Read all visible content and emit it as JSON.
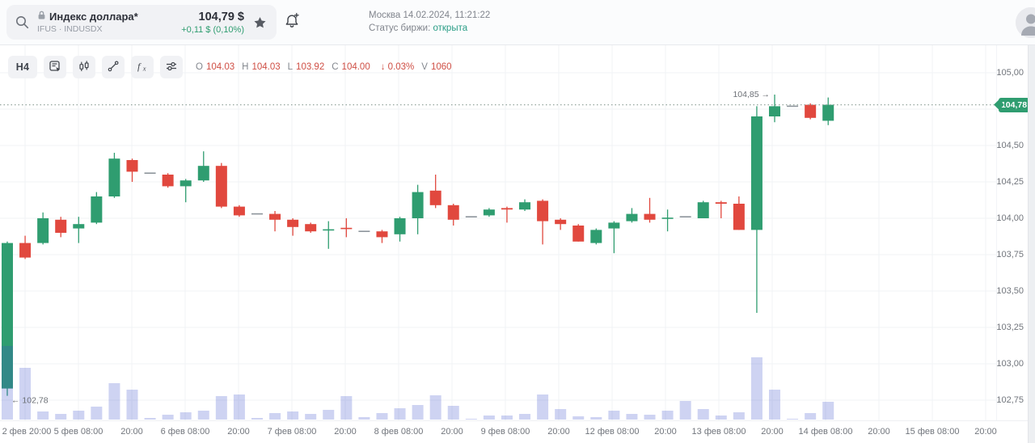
{
  "header": {
    "title": "Индекс доллара*",
    "subtitle": "IFUS · INDUSDX",
    "price": "104,79 $",
    "change": "+0,11 $ (0,10%)",
    "clock": "Москва 14.02.2024, 11:21:22",
    "status_label": "Статус биржи:",
    "status_value": "открыта"
  },
  "toolbar": {
    "timeframe": "H4",
    "ohlc": [
      {
        "l": "O",
        "v": "104.03"
      },
      {
        "l": "H",
        "v": "104.03"
      },
      {
        "l": "L",
        "v": "103.92"
      },
      {
        "l": "C",
        "v": "104.00"
      },
      {
        "l": "",
        "v": "↓ 0.03%"
      },
      {
        "l": "V",
        "v": "1060"
      }
    ]
  },
  "colors": {
    "up": "#2F9D70",
    "down": "#E1483E",
    "neutral": "#8D949B",
    "volume": "rgba(59,79,203,0.25)",
    "grid": "#f1f3f6",
    "dotted_line": "#94a69e",
    "annotation_text": "#6c7076",
    "change_green": "#2F9D70",
    "status_open_green": "#2A9D86",
    "ohlc_value_red": "#CF4F45",
    "tag_bg": "#2F9D70"
  },
  "chart_data": {
    "type": "candlestick",
    "title": "Индекс доллара (IFUS · INDUSDX), H4",
    "grid": true,
    "legend_position": "none",
    "current_price": 104.78,
    "current_price_label": "104,78",
    "high_annotation": {
      "text": "104,85 →",
      "price": 104.85
    },
    "low_annotation": {
      "text": "← 102,78",
      "price": 102.78
    },
    "y_axis": {
      "min": 102.75,
      "max": 105.0,
      "step": 0.25,
      "ticks": [
        {
          "p": 105.0,
          "t": "105,00"
        },
        {
          "p": 104.5,
          "t": "104,50"
        },
        {
          "p": 104.25,
          "t": "104,25"
        },
        {
          "p": 104.0,
          "t": "104,00"
        },
        {
          "p": 103.75,
          "t": "103,75"
        },
        {
          "p": 103.5,
          "t": "103,50"
        },
        {
          "p": 103.25,
          "t": "103,25"
        },
        {
          "p": 103.0,
          "t": "103,00"
        },
        {
          "p": 102.75,
          "t": "102,75"
        }
      ]
    },
    "x_axis": {
      "tick_labels": [
        "2 фев 20:00",
        "5 фев 08:00",
        "20:00",
        "6 фев 08:00",
        "20:00",
        "7 фев 08:00",
        "20:00",
        "8 фев 08:00",
        "20:00",
        "9 фев 08:00",
        "20:00",
        "12 фев 08:00",
        "20:00",
        "13 фев 08:00",
        "20:00",
        "14 фев 08:00",
        "20:00",
        "15 фев 08:00",
        "20:00"
      ]
    },
    "candle_format": [
      "open",
      "high",
      "low",
      "close",
      "color(g=up,r=down,n=neutral)",
      "shape(n=normal,x=cross-doji,d=flat-dash)",
      "volume_relative"
    ],
    "candles": [
      [
        102.83,
        103.84,
        102.78,
        103.83,
        "g",
        "n",
        91
      ],
      [
        103.83,
        103.88,
        103.72,
        103.73,
        "r",
        "n",
        64
      ],
      [
        103.83,
        104.04,
        103.82,
        104.0,
        "g",
        "n",
        10
      ],
      [
        103.99,
        104.01,
        103.87,
        103.9,
        "r",
        "n",
        7
      ],
      [
        103.93,
        104.01,
        103.83,
        103.96,
        "g",
        "n",
        11
      ],
      [
        103.97,
        104.18,
        103.96,
        104.15,
        "g",
        "n",
        16
      ],
      [
        104.15,
        104.45,
        104.14,
        104.41,
        "g",
        "n",
        45
      ],
      [
        104.4,
        104.41,
        104.25,
        104.32,
        "r",
        "n",
        37
      ],
      [
        104.31,
        104.32,
        104.3,
        104.31,
        "n",
        "d",
        2
      ],
      [
        104.3,
        104.31,
        104.21,
        104.22,
        "r",
        "n",
        6
      ],
      [
        104.22,
        104.27,
        104.11,
        104.26,
        "g",
        "n",
        9
      ],
      [
        104.26,
        104.46,
        104.25,
        104.36,
        "g",
        "n",
        11
      ],
      [
        104.36,
        104.38,
        104.07,
        104.08,
        "r",
        "n",
        29
      ],
      [
        104.08,
        104.09,
        104.01,
        104.02,
        "r",
        "n",
        31
      ],
      [
        104.03,
        104.04,
        104.02,
        104.03,
        "n",
        "d",
        2
      ],
      [
        104.03,
        104.05,
        103.91,
        103.99,
        "r",
        "n",
        8
      ],
      [
        103.99,
        104.0,
        103.88,
        103.94,
        "r",
        "n",
        10
      ],
      [
        103.96,
        103.97,
        103.9,
        103.91,
        "r",
        "n",
        7
      ],
      [
        103.92,
        103.98,
        103.79,
        103.92,
        "g",
        "x",
        12
      ],
      [
        103.93,
        104.0,
        103.87,
        103.93,
        "r",
        "x",
        29
      ],
      [
        103.91,
        103.92,
        103.9,
        103.91,
        "n",
        "d",
        3
      ],
      [
        103.91,
        103.92,
        103.83,
        103.87,
        "r",
        "n",
        8
      ],
      [
        103.89,
        104.01,
        103.84,
        104.0,
        "g",
        "n",
        14
      ],
      [
        104.0,
        104.23,
        103.89,
        104.18,
        "g",
        "n",
        18
      ],
      [
        104.19,
        104.3,
        104.07,
        104.09,
        "r",
        "n",
        30
      ],
      [
        104.09,
        104.1,
        103.95,
        103.99,
        "r",
        "n",
        17
      ],
      [
        104.01,
        104.02,
        104.0,
        104.01,
        "n",
        "d",
        1
      ],
      [
        104.02,
        104.07,
        104.01,
        104.06,
        "g",
        "n",
        5
      ],
      [
        104.07,
        104.08,
        103.97,
        104.06,
        "r",
        "n",
        5
      ],
      [
        104.06,
        104.13,
        104.05,
        104.11,
        "g",
        "n",
        7
      ],
      [
        104.12,
        104.13,
        103.82,
        103.98,
        "r",
        "n",
        31
      ],
      [
        103.99,
        104.0,
        103.92,
        103.96,
        "r",
        "n",
        13
      ],
      [
        103.95,
        103.96,
        103.84,
        103.84,
        "r",
        "n",
        4
      ],
      [
        103.83,
        103.93,
        103.82,
        103.92,
        "g",
        "n",
        3
      ],
      [
        103.93,
        103.98,
        103.76,
        103.97,
        "g",
        "n",
        11
      ],
      [
        103.98,
        104.07,
        103.97,
        104.03,
        "g",
        "n",
        7
      ],
      [
        104.03,
        104.14,
        103.97,
        103.99,
        "r",
        "n",
        6
      ],
      [
        104.0,
        104.06,
        103.91,
        104.0,
        "g",
        "x",
        11
      ],
      [
        104.01,
        104.02,
        104.0,
        104.01,
        "n",
        "d",
        23
      ],
      [
        104.0,
        104.12,
        104.0,
        104.11,
        "g",
        "n",
        13
      ],
      [
        104.11,
        104.12,
        104.0,
        104.1,
        "r",
        "n",
        5
      ],
      [
        104.1,
        104.15,
        103.92,
        103.92,
        "r",
        "n",
        9
      ],
      [
        103.92,
        104.77,
        103.35,
        104.7,
        "g",
        "n",
        77
      ],
      [
        104.7,
        104.85,
        104.66,
        104.77,
        "g",
        "n",
        37
      ],
      [
        104.77,
        104.78,
        104.76,
        104.77,
        "n",
        "d",
        1
      ],
      [
        104.78,
        104.79,
        104.68,
        104.69,
        "r",
        "n",
        8
      ],
      [
        104.67,
        104.83,
        104.64,
        104.78,
        "g",
        "n",
        22
      ]
    ]
  }
}
